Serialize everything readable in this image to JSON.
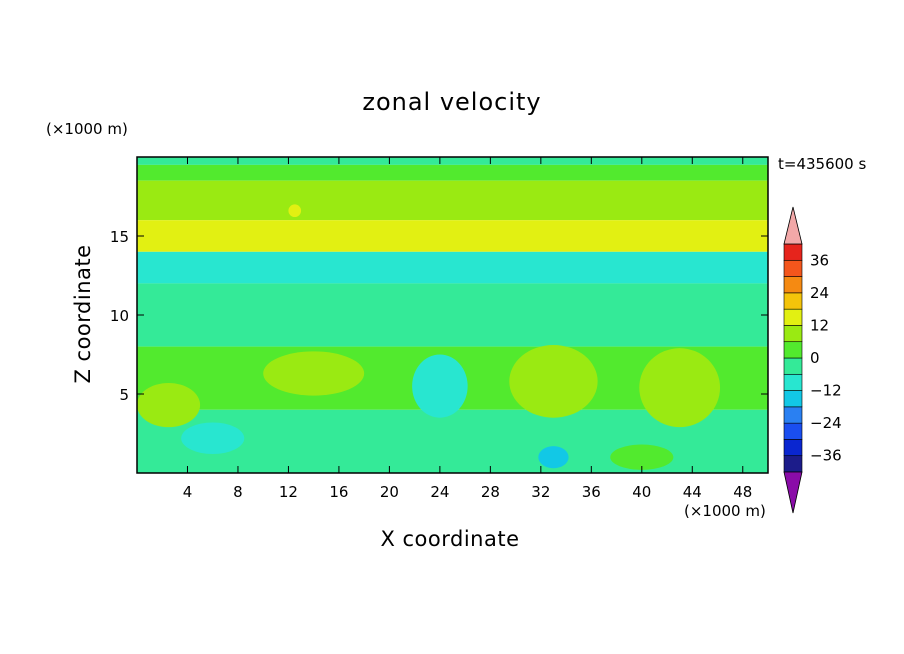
{
  "chart_data": {
    "type": "heatmap",
    "title": "zonal velocity",
    "xlabel": "X coordinate",
    "ylabel": "Z coordinate",
    "x_unit": "(×1000 m)",
    "y_unit": "(×1000 m)",
    "annotation": "t=435600 s",
    "xlim": [
      0,
      50
    ],
    "ylim": [
      0,
      20
    ],
    "x_ticks": [
      4,
      8,
      12,
      16,
      20,
      24,
      28,
      32,
      36,
      40,
      44,
      48
    ],
    "y_ticks": [
      5,
      10,
      15
    ],
    "colorbar": {
      "ticks": [
        36,
        24,
        12,
        0,
        -12,
        -24,
        -36
      ],
      "levels": [
        -42,
        -36,
        -30,
        -24,
        -18,
        -12,
        -6,
        0,
        6,
        12,
        18,
        24,
        30,
        36,
        42
      ],
      "colors": [
        "#3a0a9a",
        "#1c1c8a",
        "#0a26d0",
        "#1a4ef0",
        "#2a80f2",
        "#12c8e6",
        "#28e6d0",
        "#34ea98",
        "#52ea2e",
        "#9aea12",
        "#e2f012",
        "#f4c40a",
        "#f58a12",
        "#f4561c",
        "#e6241c",
        "#ee1616"
      ],
      "over_color": "#f2a8a8",
      "under_color": "#8a0ca8"
    },
    "bands": [
      {
        "z_range": [
          19.5,
          20
        ],
        "value": -6
      },
      {
        "z_range": [
          18.5,
          19.5
        ],
        "value": 0
      },
      {
        "z_range": [
          16,
          18.5
        ],
        "value": 8
      },
      {
        "z_range": [
          14,
          16
        ],
        "value": 12
      },
      {
        "z_range": [
          12,
          14
        ],
        "value": -8
      },
      {
        "z_range": [
          8,
          12
        ],
        "value": -4
      },
      {
        "z_range": [
          4,
          8
        ],
        "value": 2
      },
      {
        "z_range": [
          0,
          4
        ],
        "value": -6
      }
    ],
    "blobs": [
      {
        "x": 2.5,
        "z": 4.3,
        "rx": 2.5,
        "rz": 1.4,
        "value": 8
      },
      {
        "x": 14,
        "z": 6.3,
        "rx": 4,
        "rz": 1.4,
        "value": 6
      },
      {
        "x": 24,
        "z": 5.5,
        "rx": 2.2,
        "rz": 2,
        "value": -10
      },
      {
        "x": 33,
        "z": 5.8,
        "rx": 3.5,
        "rz": 2.3,
        "value": 7
      },
      {
        "x": 43,
        "z": 5.4,
        "rx": 3.2,
        "rz": 2.5,
        "value": 6
      },
      {
        "x": 6,
        "z": 2.2,
        "rx": 2.5,
        "rz": 1,
        "value": -11
      },
      {
        "x": 40,
        "z": 1,
        "rx": 2.5,
        "rz": 0.8,
        "value": 5
      },
      {
        "x": 33,
        "z": 1,
        "rx": 1.2,
        "rz": 0.7,
        "value": -14
      },
      {
        "x": 44,
        "z": 15,
        "rx": 2.5,
        "rz": 0.8,
        "value": 14
      },
      {
        "x": 12.5,
        "z": 16.6,
        "rx": 0.5,
        "rz": 0.4,
        "value": 17
      }
    ]
  }
}
